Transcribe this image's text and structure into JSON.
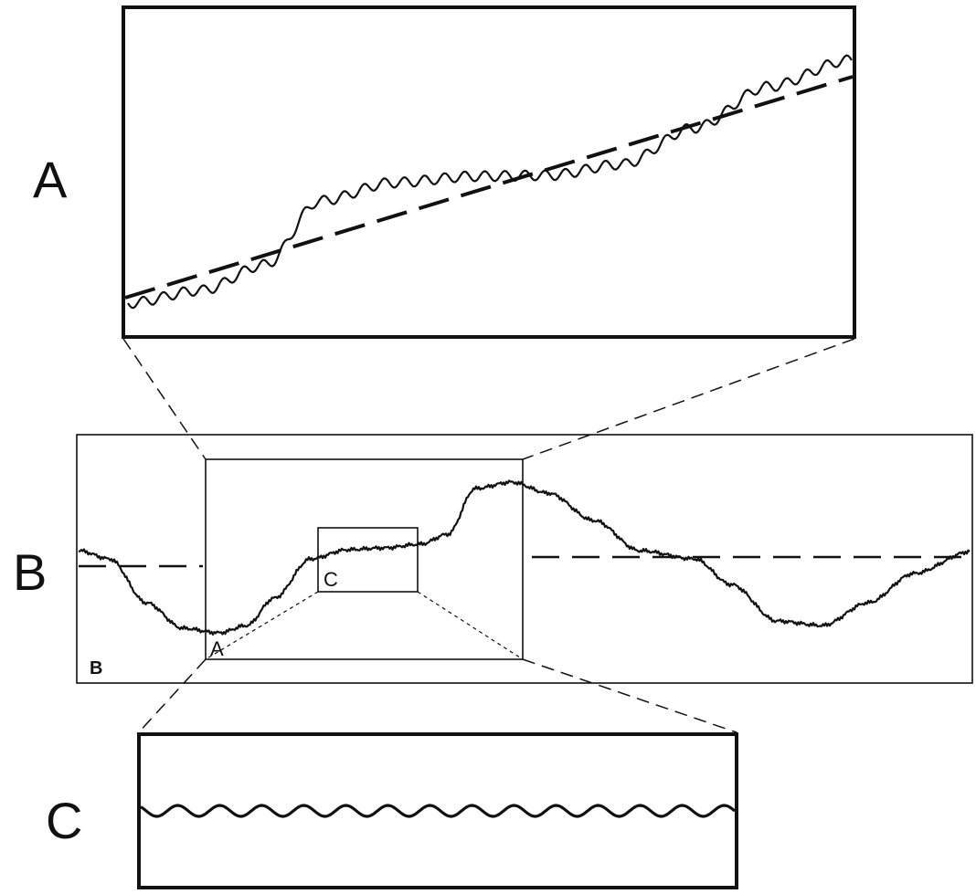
{
  "panels": {
    "a": {
      "label": "A"
    },
    "b": {
      "label": "B",
      "inner_label": "B"
    },
    "c": {
      "label": "C"
    }
  },
  "zoom_boxes": {
    "a": {
      "label": "A"
    },
    "c": {
      "label": "C"
    }
  }
}
